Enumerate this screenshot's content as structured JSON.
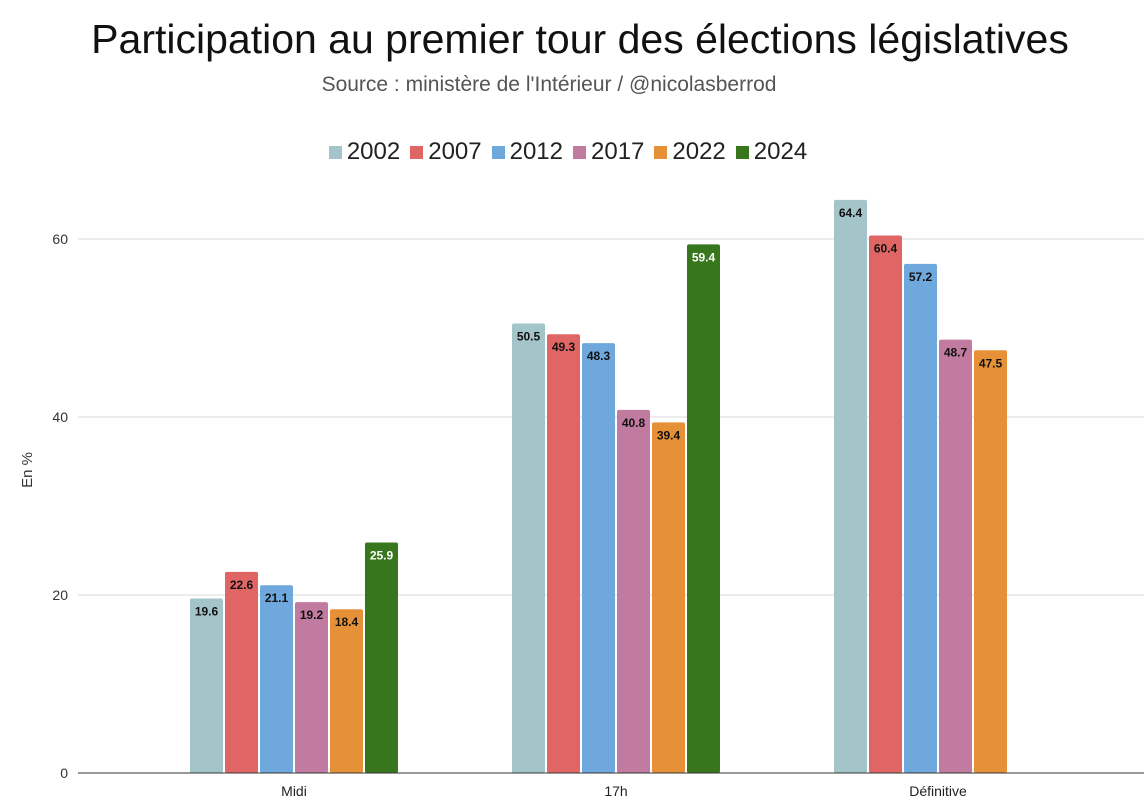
{
  "header": {
    "title": "Participation au premier tour des élections législatives",
    "subtitle": "Source : ministère de l'Intérieur / @nicolasberrod"
  },
  "chart_data": {
    "type": "bar",
    "title": "Participation au premier tour des élections législatives",
    "subtitle": "Source : ministère de l'Intérieur / @nicolasberrod",
    "ylabel": "En %",
    "xlabel": "",
    "ylim": [
      0,
      70
    ],
    "yticks": [
      "0",
      "20",
      "40",
      "60"
    ],
    "grid": true,
    "legend_position": "top",
    "categories": [
      "Midi",
      "17h",
      "Définitive"
    ],
    "series": [
      {
        "name": "2002",
        "color": "#a3c4c9",
        "values": [
          19.6,
          50.5,
          64.4
        ],
        "labels": [
          "19.6",
          "50.5",
          "64.4"
        ]
      },
      {
        "name": "2007",
        "color": "#e06666",
        "values": [
          22.6,
          49.3,
          60.4
        ],
        "labels": [
          "22.6",
          "49.3",
          "60.4"
        ]
      },
      {
        "name": "2012",
        "color": "#6fa8dc",
        "values": [
          21.1,
          48.3,
          57.2
        ],
        "labels": [
          "21.1",
          "48.3",
          "57.2"
        ]
      },
      {
        "name": "2017",
        "color": "#c27ba0",
        "values": [
          19.2,
          40.8,
          48.7
        ],
        "labels": [
          "19.2",
          "40.8",
          "48.7"
        ]
      },
      {
        "name": "2022",
        "color": "#e69138",
        "values": [
          18.4,
          39.4,
          47.5
        ],
        "labels": [
          "18.4",
          "39.4",
          "47.5"
        ]
      },
      {
        "name": "2024",
        "color": "#38761d",
        "values": [
          25.9,
          59.4,
          null
        ],
        "labels": [
          "25.9",
          "59.4",
          null
        ]
      }
    ]
  }
}
